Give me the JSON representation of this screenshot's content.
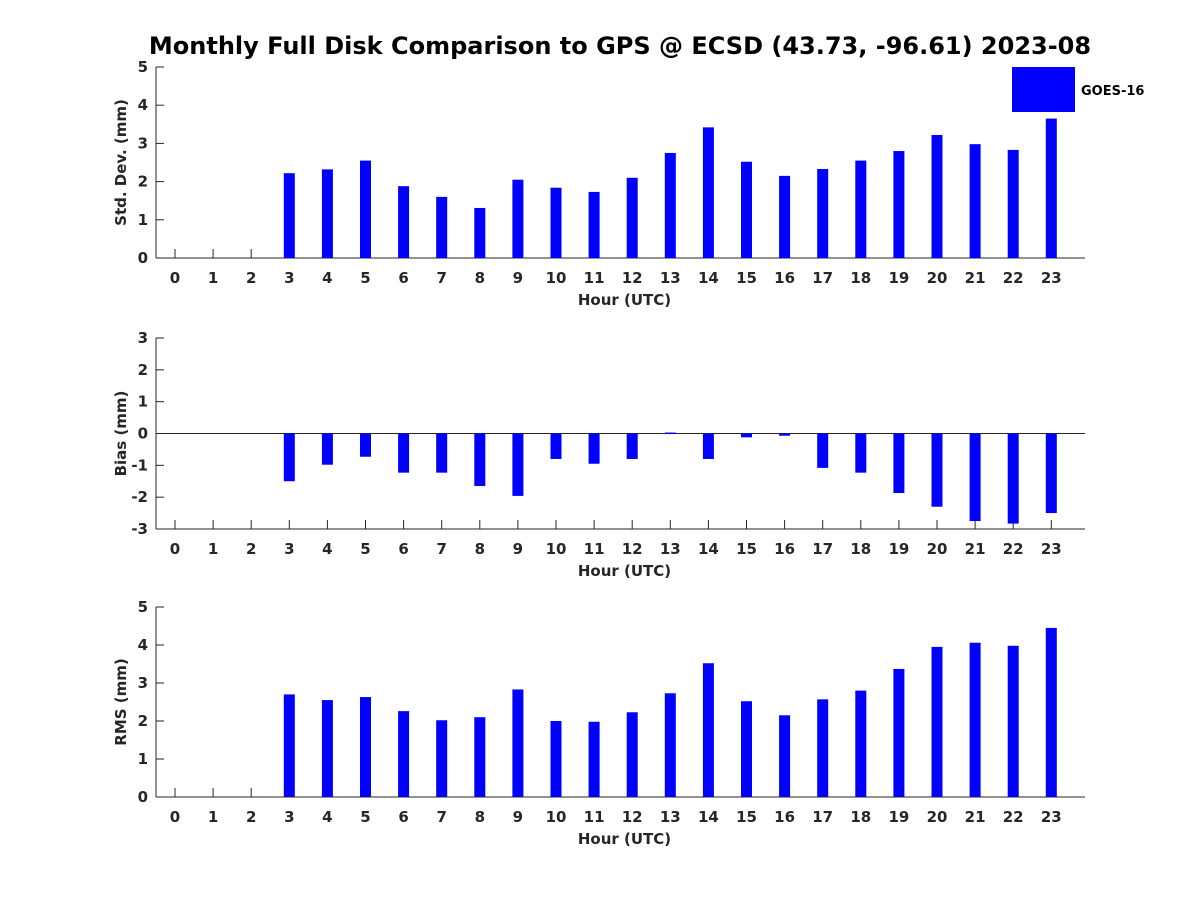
{
  "chart_data": {
    "title": "Monthly Full Disk Comparison to GPS @ ECSD (43.73, -96.61) 2023-08",
    "legend": {
      "label": "GOES-16",
      "color": "#0000ff",
      "placement": "top-right"
    },
    "bar_color": "#0000ff",
    "panels": [
      {
        "id": "std",
        "type": "bar",
        "xlabel": "Hour (UTC)",
        "ylabel": "Std. Dev. (mm)",
        "ylim": [
          0,
          5
        ],
        "yticks": [
          0,
          1,
          2,
          3,
          4,
          5
        ],
        "categories": [
          0,
          1,
          2,
          3,
          4,
          5,
          6,
          7,
          8,
          9,
          10,
          11,
          12,
          13,
          14,
          15,
          16,
          17,
          18,
          19,
          20,
          21,
          22,
          23
        ],
        "values": [
          null,
          null,
          null,
          2.22,
          2.32,
          2.55,
          1.88,
          1.6,
          1.31,
          2.05,
          1.84,
          1.73,
          2.1,
          2.75,
          3.42,
          2.52,
          2.15,
          2.33,
          2.55,
          2.8,
          3.22,
          2.98,
          2.83,
          3.65
        ]
      },
      {
        "id": "bias",
        "type": "bar",
        "xlabel": "Hour (UTC)",
        "ylabel": "Bias (mm)",
        "ylim": [
          -3,
          3
        ],
        "yticks": [
          -3,
          -2,
          -1,
          0,
          1,
          2,
          3
        ],
        "categories": [
          0,
          1,
          2,
          3,
          4,
          5,
          6,
          7,
          8,
          9,
          10,
          11,
          12,
          13,
          14,
          15,
          16,
          17,
          18,
          19,
          20,
          21,
          22,
          23
        ],
        "values": [
          null,
          null,
          null,
          -1.5,
          -0.98,
          -0.73,
          -1.23,
          -1.23,
          -1.65,
          -1.96,
          -0.8,
          -0.95,
          -0.8,
          0.03,
          -0.8,
          -0.12,
          -0.07,
          -1.08,
          -1.23,
          -1.87,
          -2.3,
          -2.75,
          -2.83,
          -2.5
        ]
      },
      {
        "id": "rms",
        "type": "bar",
        "xlabel": "Hour (UTC)",
        "ylabel": "RMS (mm)",
        "ylim": [
          0,
          5
        ],
        "yticks": [
          0,
          1,
          2,
          3,
          4,
          5
        ],
        "categories": [
          0,
          1,
          2,
          3,
          4,
          5,
          6,
          7,
          8,
          9,
          10,
          11,
          12,
          13,
          14,
          15,
          16,
          17,
          18,
          19,
          20,
          21,
          22,
          23
        ],
        "values": [
          null,
          null,
          null,
          2.7,
          2.55,
          2.63,
          2.26,
          2.02,
          2.1,
          2.83,
          2.0,
          1.98,
          2.23,
          2.73,
          3.52,
          2.52,
          2.15,
          2.57,
          2.8,
          3.37,
          3.95,
          4.06,
          3.98,
          4.45
        ]
      }
    ]
  }
}
